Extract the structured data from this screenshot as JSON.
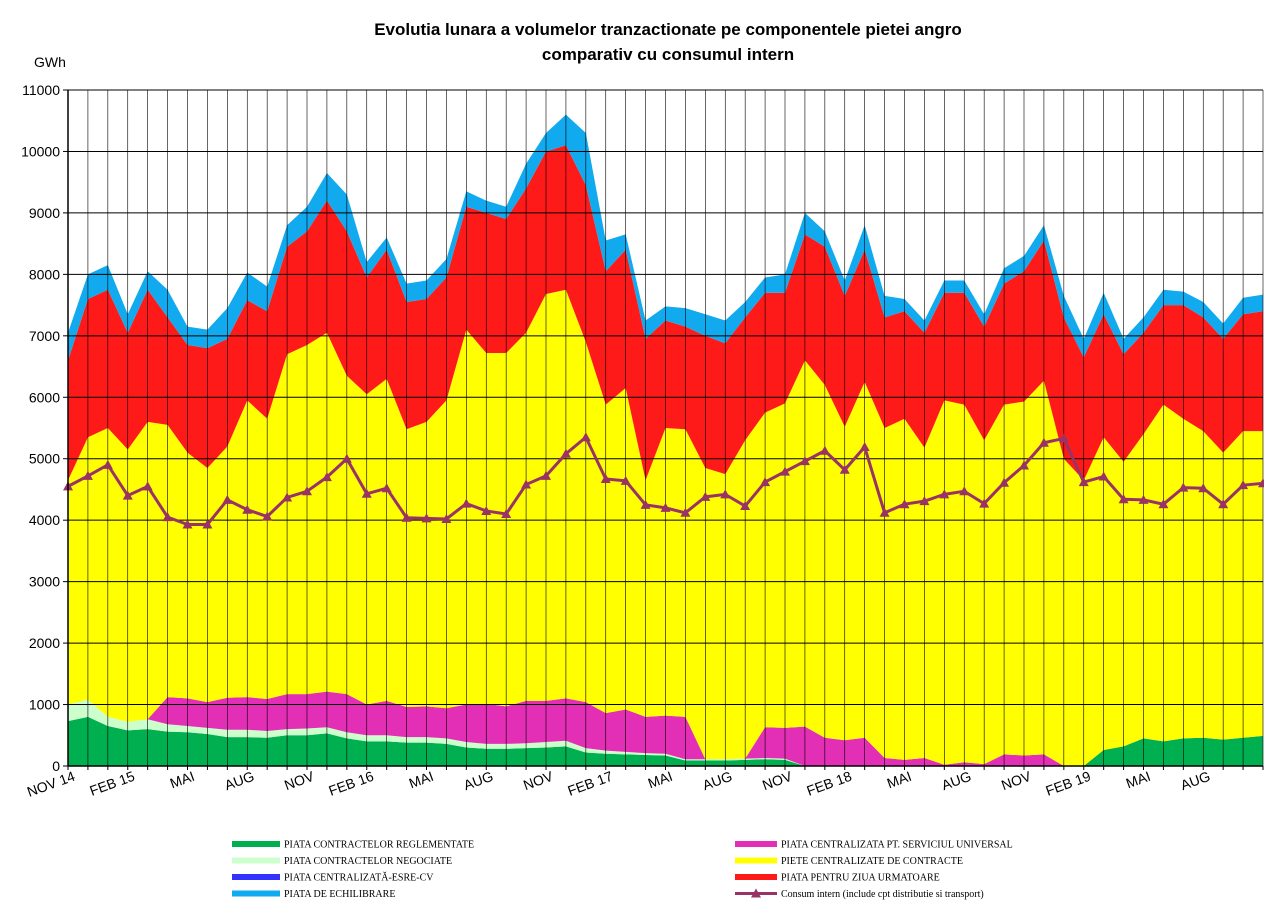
{
  "chart_data": {
    "type": "area",
    "stacked": true,
    "title": [
      "Evolutia lunara a volumelor tranzactionate pe componentele pietei angro",
      "comparativ cu consumul intern"
    ],
    "y_label": "GWh",
    "ylim": [
      0,
      11000
    ],
    "yticks": [
      0,
      1000,
      2000,
      3000,
      4000,
      5000,
      6000,
      7000,
      8000,
      9000,
      10000,
      11000
    ],
    "grid": true,
    "categories": [
      "NOV 14",
      null,
      null,
      "FEB 15",
      null,
      null,
      "MAI",
      null,
      null,
      "AUG",
      null,
      null,
      "NOV",
      null,
      null,
      "FEB 16",
      null,
      null,
      "MAI",
      null,
      null,
      "AUG",
      null,
      null,
      "NOV",
      null,
      null,
      "FEB 17",
      null,
      null,
      "MAI",
      null,
      null,
      "AUG",
      null,
      null,
      "NOV",
      null,
      null,
      "FEB 18",
      null,
      null,
      "MAI",
      null,
      null,
      "AUG",
      null,
      null,
      "NOV",
      null,
      null,
      "FEB 19",
      null,
      null,
      "MAI",
      null,
      null,
      "AUG",
      null,
      null,
      null
    ],
    "series": [
      {
        "name": "PIATA CONTRACTELOR REGLEMENTATE",
        "color": "#00b050",
        "values": [
          730,
          800,
          650,
          580,
          600,
          560,
          550,
          520,
          470,
          470,
          460,
          500,
          500,
          530,
          450,
          400,
          400,
          380,
          380,
          360,
          300,
          280,
          280,
          290,
          300,
          320,
          220,
          200,
          190,
          180,
          170,
          90,
          90,
          90,
          100,
          110,
          100,
          0,
          0,
          0,
          0,
          0,
          0,
          0,
          0,
          0,
          0,
          0,
          0,
          0,
          0,
          0,
          260,
          320,
          450,
          400,
          450,
          460,
          430,
          460,
          490
        ]
      },
      {
        "name": "PIATA CONTRACTELOR NEGOCIATE",
        "color": "#ccffcc",
        "values": [
          270,
          280,
          150,
          140,
          160,
          120,
          100,
          100,
          120,
          120,
          110,
          100,
          110,
          100,
          100,
          100,
          100,
          90,
          90,
          90,
          90,
          80,
          80,
          80,
          90,
          90,
          70,
          50,
          40,
          30,
          30,
          20,
          20,
          20,
          20,
          20,
          20,
          0,
          0,
          0,
          0,
          0,
          0,
          0,
          0,
          0,
          0,
          0,
          0,
          0,
          0,
          0,
          0,
          0,
          0,
          0,
          0,
          0,
          0,
          0,
          0
        ]
      },
      {
        "name": "PIATA CENTRALIZATA PT. SERVICIUL UNIVERSAL",
        "color": "#e22fb5",
        "values": [
          0,
          0,
          0,
          0,
          0,
          440,
          450,
          420,
          520,
          530,
          520,
          570,
          560,
          580,
          620,
          500,
          560,
          490,
          500,
          490,
          610,
          650,
          610,
          690,
          670,
          690,
          750,
          610,
          690,
          590,
          620,
          690,
          0,
          0,
          0,
          500,
          500,
          640,
          460,
          420,
          460,
          130,
          100,
          130,
          20,
          60,
          30,
          190,
          170,
          190,
          0,
          0,
          0,
          0,
          0,
          0,
          0,
          0,
          0,
          0,
          0
        ]
      },
      {
        "name": "PIATA CENTRALIZATĂ-ESRE-CV",
        "color": "#3333ff",
        "values": [
          0,
          0,
          0,
          0,
          0,
          0,
          0,
          0,
          0,
          0,
          0,
          0,
          0,
          0,
          0,
          0,
          0,
          0,
          0,
          0,
          0,
          0,
          0,
          0,
          0,
          0,
          0,
          0,
          0,
          0,
          0,
          0,
          0,
          0,
          0,
          0,
          0,
          0,
          0,
          0,
          0,
          0,
          0,
          0,
          0,
          0,
          0,
          0,
          0,
          0,
          0,
          0,
          0,
          0,
          0,
          0,
          0,
          0,
          0,
          0,
          0
        ]
      },
      {
        "name": "PIETE CENTRALIZATE DE CONTRACTE",
        "color": "#ffff00",
        "values": [
          3650,
          4270,
          4700,
          4430,
          4840,
          4430,
          4000,
          3810,
          4090,
          4830,
          4560,
          5530,
          5680,
          5840,
          5180,
          5050,
          5240,
          4520,
          4630,
          5010,
          6100,
          5710,
          5750,
          5990,
          6620,
          6650,
          5860,
          5020,
          5230,
          3850,
          4680,
          4680,
          4740,
          4640,
          5180,
          5120,
          5280,
          5960,
          5740,
          5100,
          5790,
          5370,
          5550,
          5050,
          5930,
          5820,
          5270,
          5690,
          5760,
          6080,
          5000,
          4650,
          5090,
          4630,
          4950,
          5480,
          5200,
          4990,
          4670,
          4990,
          4960
        ]
      },
      {
        "name": "PIATA PENTRU ZIUA URMATOARE",
        "color": "#ff1a1a",
        "values": [
          1950,
          2250,
          2250,
          1900,
          2150,
          1750,
          1750,
          1950,
          1750,
          1630,
          1750,
          1750,
          1850,
          2150,
          2350,
          1900,
          2100,
          2070,
          2000,
          2000,
          2000,
          2280,
          2180,
          2350,
          2320,
          2350,
          2550,
          2170,
          2250,
          2300,
          1750,
          1670,
          2150,
          2130,
          2000,
          1950,
          1800,
          2050,
          2250,
          2130,
          2150,
          1800,
          1750,
          1870,
          1750,
          1820,
          1850,
          1970,
          2120,
          2280,
          2300,
          2000,
          2000,
          1750,
          1650,
          1620,
          1850,
          1850,
          1850,
          1900,
          1950
        ]
      },
      {
        "name": "PIATA DE ECHILIBRARE",
        "color": "#11aaee",
        "values": [
          450,
          400,
          400,
          300,
          300,
          450,
          300,
          300,
          500,
          450,
          400,
          350,
          400,
          450,
          600,
          250,
          200,
          300,
          300,
          300,
          250,
          200,
          200,
          400,
          300,
          500,
          850,
          500,
          250,
          300,
          230,
          300,
          350,
          370,
          250,
          250,
          300,
          350,
          250,
          250,
          400,
          350,
          200,
          200,
          200,
          200,
          200,
          250,
          250,
          250,
          350,
          300,
          350,
          250,
          250,
          250,
          220,
          250,
          250,
          270,
          270
        ]
      },
      {
        "name": "Consum intern (include cpt distributie si transport)",
        "color": "#993366",
        "type": "line",
        "values": [
          4550,
          4720,
          4900,
          4400,
          4550,
          4050,
          3930,
          3930,
          4330,
          4170,
          4060,
          4370,
          4470,
          4700,
          5000,
          4430,
          4520,
          4040,
          4030,
          4020,
          4270,
          4150,
          4100,
          4580,
          4720,
          5080,
          5350,
          4670,
          4640,
          4250,
          4200,
          4120,
          4380,
          4420,
          4230,
          4620,
          4790,
          4960,
          5130,
          4820,
          5190,
          4120,
          4260,
          4310,
          4420,
          4470,
          4270,
          4610,
          4890,
          5260,
          5330,
          4620,
          4710,
          4340,
          4330,
          4260,
          4530,
          4520,
          4260,
          4570,
          4600
        ]
      }
    ]
  }
}
